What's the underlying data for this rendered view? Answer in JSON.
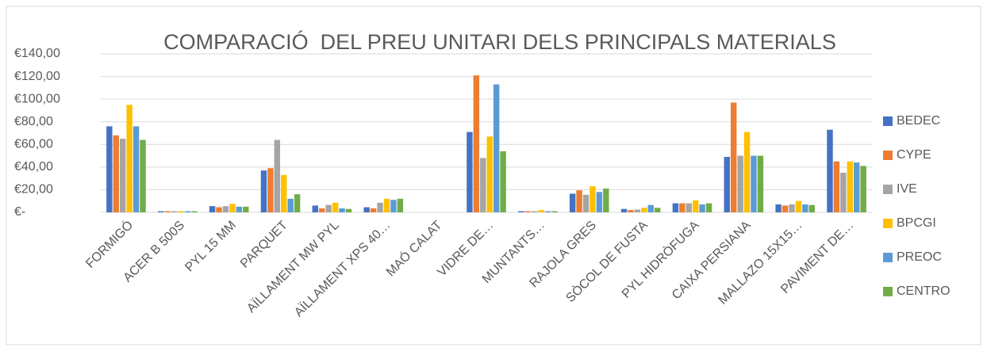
{
  "chart_data": {
    "type": "bar",
    "title": "COMPARACIÓ  DEL PREU UNITARI DELS PRINCIPALS MATERIALS",
    "categories": [
      "FORMIGÓ",
      "ACER B 500S",
      "PYL 15 MM",
      "PARQUET",
      "AÏLLAMENT MW PYL",
      "AÏLLAMENT XPS 40…",
      "MAÓ CALAT",
      "VIDRE DE…",
      "MUNTANTS…",
      "RAJOLA GRES",
      "SÒCOL DE FUSTA",
      "PYL HIDRÒFUGA",
      "CAIXA PERSIANA",
      "MALLAZO 15X15…",
      "PAVIMENT DE…"
    ],
    "series": [
      {
        "name": "BEDEC",
        "color": "#4472c4",
        "values": [
          76,
          1,
          5.5,
          37,
          6,
          4.5,
          0,
          71,
          1,
          16.5,
          3,
          8,
          49,
          7,
          73
        ]
      },
      {
        "name": "CYPE",
        "color": "#ed7d31",
        "values": [
          68,
          1,
          4.5,
          39,
          3.5,
          3.5,
          0,
          121,
          1,
          19.5,
          2,
          8,
          97,
          6,
          45
        ]
      },
      {
        "name": "IVE",
        "color": "#a5a5a5",
        "values": [
          65,
          1,
          5.5,
          64,
          6.5,
          8.5,
          0,
          48,
          1,
          15.5,
          2.5,
          8,
          50,
          7,
          35
        ]
      },
      {
        "name": "BPCGI",
        "color": "#ffc000",
        "values": [
          95,
          1,
          7.5,
          33,
          8.5,
          12,
          0,
          67,
          2,
          23,
          4,
          10.5,
          71,
          10,
          45
        ]
      },
      {
        "name": "PREOC",
        "color": "#5b9bd5",
        "values": [
          76,
          1,
          5,
          12,
          3.5,
          11,
          0,
          113,
          1,
          18,
          6.5,
          7,
          50,
          7,
          44
        ]
      },
      {
        "name": "CENTRO",
        "color": "#70ad47",
        "values": [
          64,
          1,
          5,
          16,
          3,
          12,
          0,
          54,
          1,
          21,
          4,
          8,
          50,
          6.5,
          41
        ]
      }
    ],
    "ylim": [
      0,
      140
    ],
    "yticks": [
      {
        "value": 0,
        "label": "€-"
      },
      {
        "value": 20,
        "label": "€20,00"
      },
      {
        "value": 40,
        "label": "€40,00"
      },
      {
        "value": 60,
        "label": "€60,00"
      },
      {
        "value": 80,
        "label": "€80,00"
      },
      {
        "value": 100,
        "label": "€100,00"
      },
      {
        "value": 120,
        "label": "€120,00"
      },
      {
        "value": 140,
        "label": "€140,00"
      }
    ],
    "grid": true,
    "legend": "right"
  }
}
